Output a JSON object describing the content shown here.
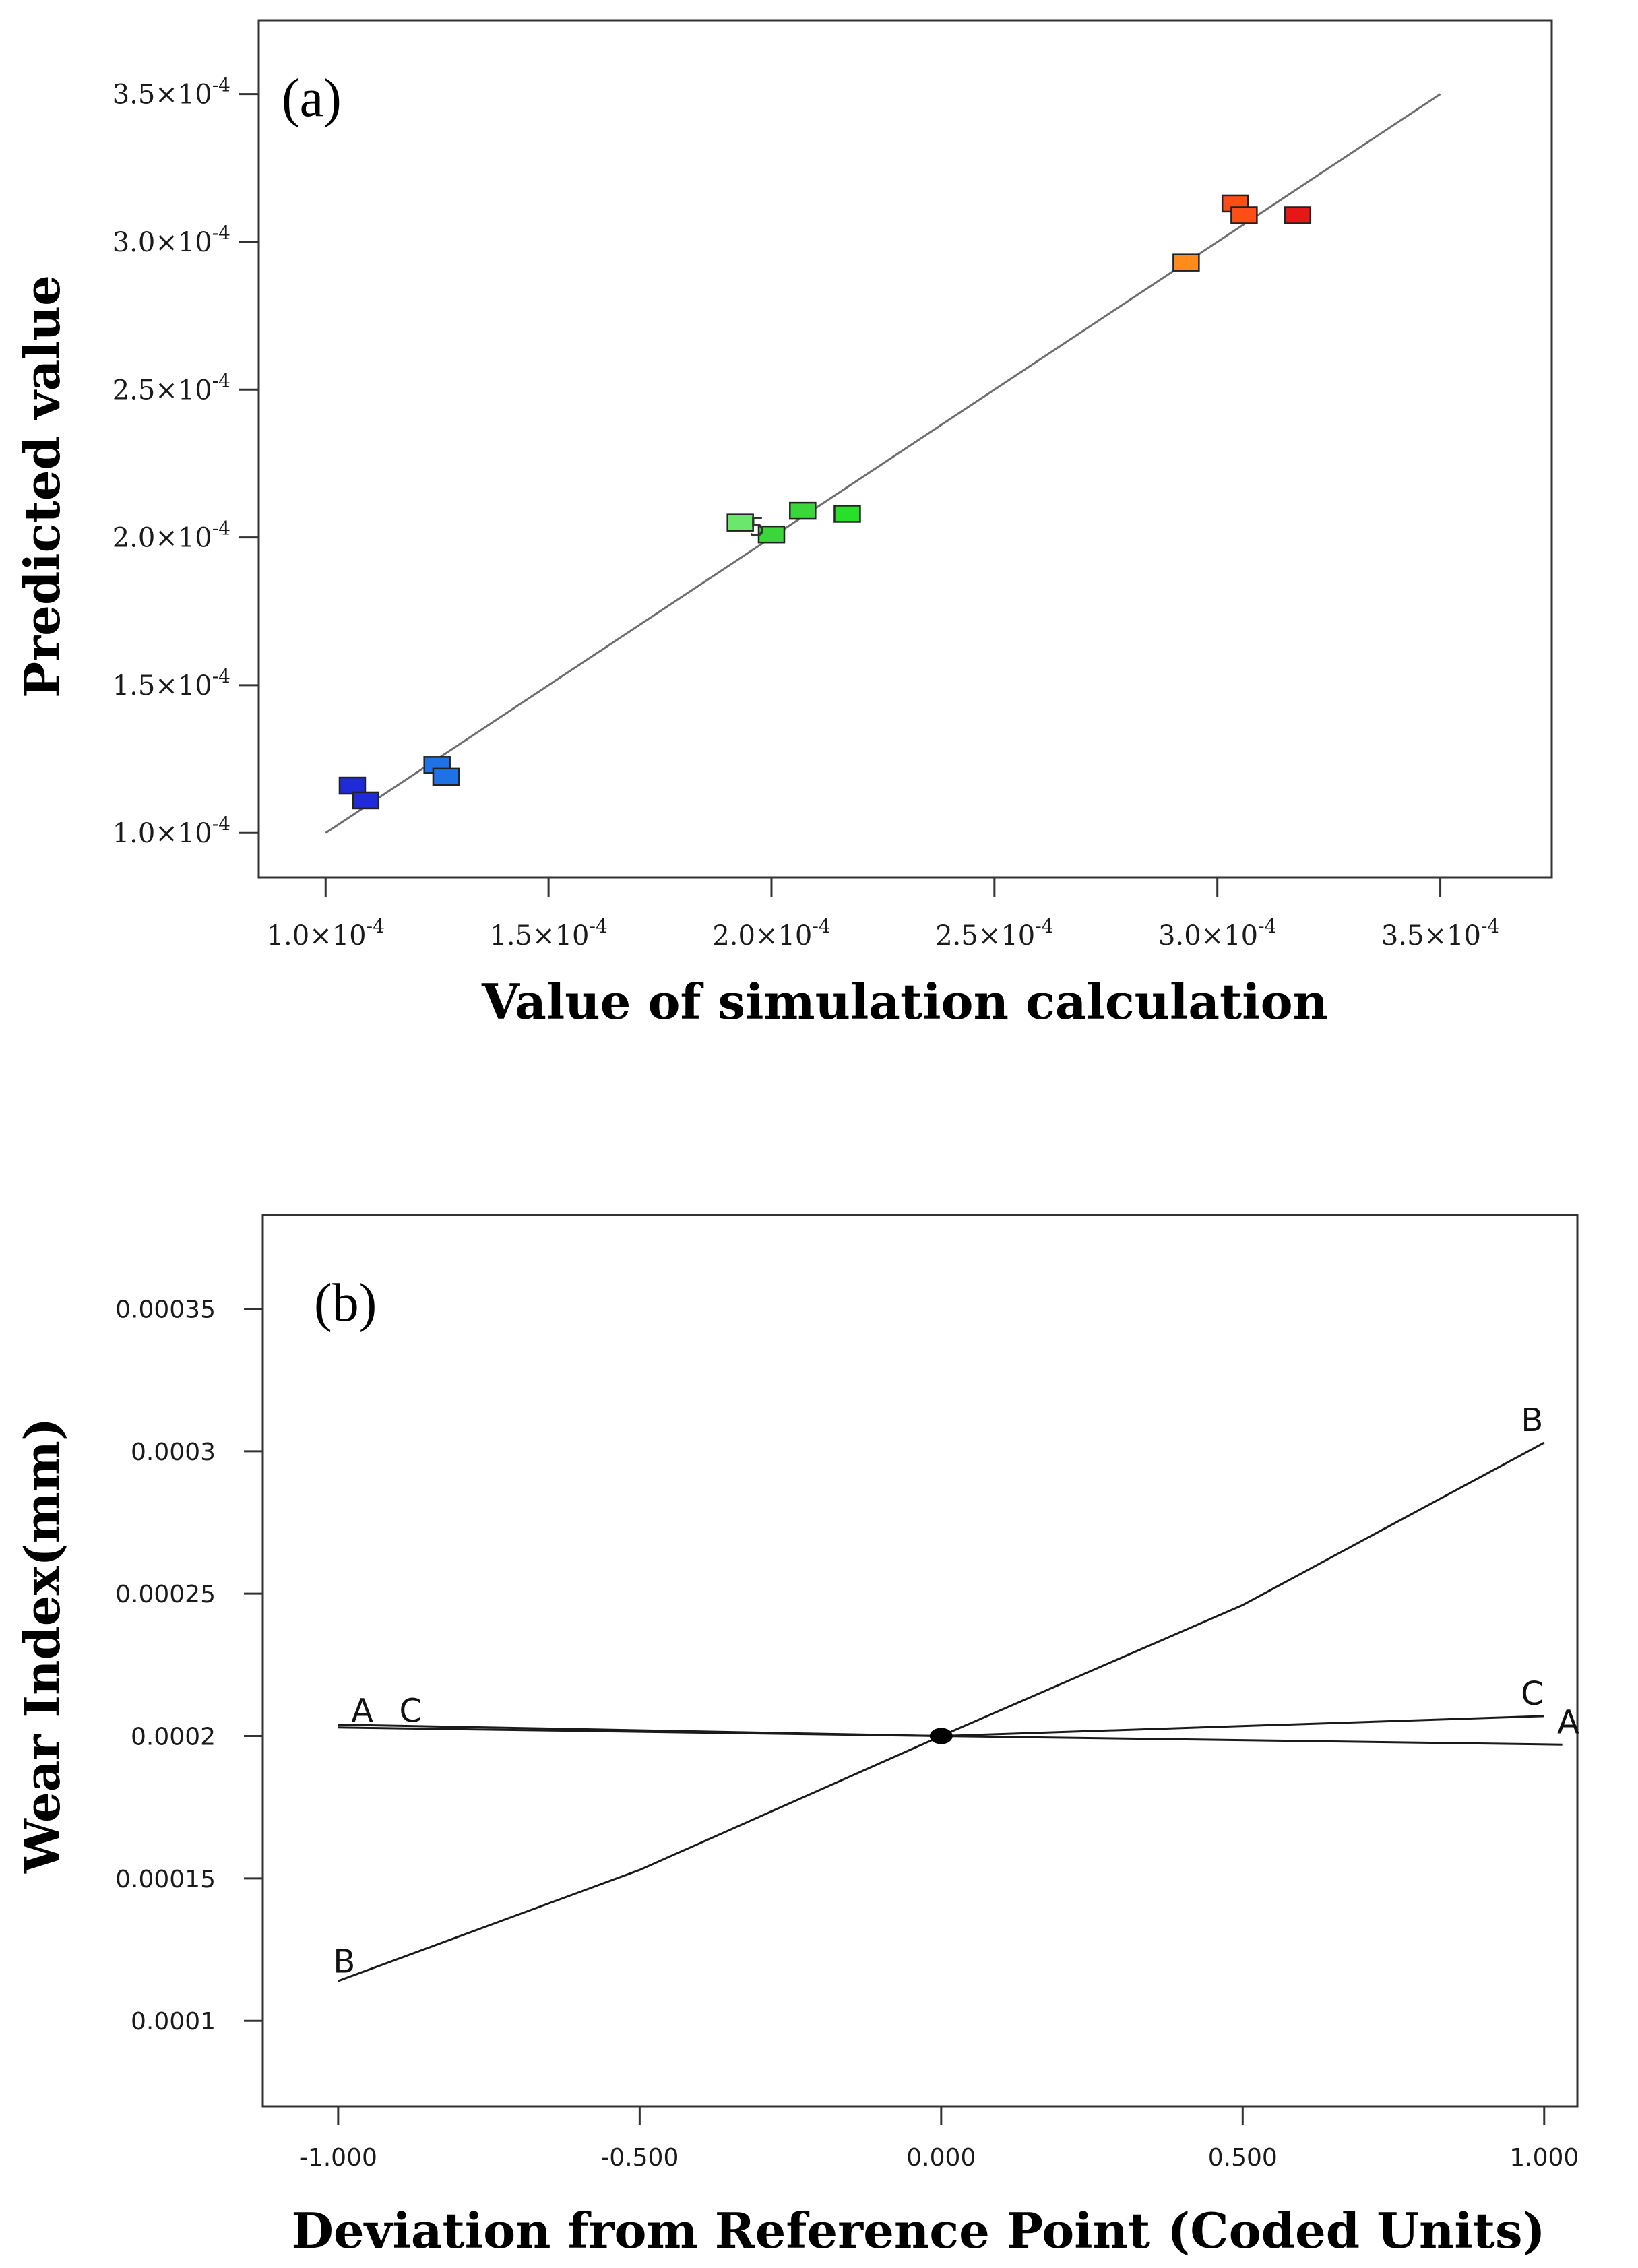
{
  "chart_data": [
    {
      "type": "scatter",
      "panel_label": "(a)",
      "title": "",
      "xlabel": "Value of simulation calculation",
      "ylabel": "Predicted value",
      "xlim": [
        0.85,
        3.75
      ],
      "ylim": [
        0.85,
        3.75
      ],
      "unit_scale": "×10^-4",
      "x_ticks": [
        1.0,
        1.5,
        2.0,
        2.5,
        3.0,
        3.5
      ],
      "y_ticks": [
        1.0,
        1.5,
        2.0,
        2.5,
        3.0,
        3.5
      ],
      "tick_mantissas": [
        "1.0",
        "1.5",
        "2.0",
        "2.5",
        "3.0",
        "3.5"
      ],
      "tick_suffix": "×10",
      "tick_exponent": "-4",
      "reference_line": {
        "from": [
          1.0,
          1.0
        ],
        "to": [
          3.5,
          3.5
        ]
      },
      "point_annotation": "5",
      "points": [
        {
          "x": 1.06,
          "y": 1.16,
          "color": "#1f2bd9"
        },
        {
          "x": 1.09,
          "y": 1.11,
          "color": "#1f2bd9"
        },
        {
          "x": 1.25,
          "y": 1.23,
          "color": "#1f72e6"
        },
        {
          "x": 1.27,
          "y": 1.19,
          "color": "#1f72e6"
        },
        {
          "x": 1.93,
          "y": 2.05,
          "color": "#6be86b"
        },
        {
          "x": 2.0,
          "y": 2.01,
          "color": "#3ad63a"
        },
        {
          "x": 2.07,
          "y": 2.09,
          "color": "#3ad63a"
        },
        {
          "x": 2.17,
          "y": 2.08,
          "color": "#27e027"
        },
        {
          "x": 2.93,
          "y": 2.93,
          "color": "#ff8c1a"
        },
        {
          "x": 3.04,
          "y": 3.13,
          "color": "#ff4d1a"
        },
        {
          "x": 3.06,
          "y": 3.09,
          "color": "#ff4d1a"
        },
        {
          "x": 3.18,
          "y": 3.09,
          "color": "#e61717"
        }
      ]
    },
    {
      "type": "line",
      "panel_label": "(b)",
      "title": "",
      "xlabel": "Deviation from Reference Point (Coded Units)",
      "ylabel": "Wear Index(mm)",
      "xlim": [
        -1.125,
        1.055
      ],
      "ylim": [
        7e-05,
        0.000383
      ],
      "x_ticks": [
        -1.0,
        -0.5,
        0.0,
        0.5,
        1.0
      ],
      "x_tick_labels": [
        "-1.000",
        "-0.500",
        "0.000",
        "0.500",
        "1.000"
      ],
      "y_ticks": [
        0.0001,
        0.00015,
        0.0002,
        0.00025,
        0.0003,
        0.00035
      ],
      "y_tick_labels": [
        "0.0001",
        "0.00015",
        "0.0002",
        "0.00025",
        "0.0003",
        "0.00035"
      ],
      "reference_point": {
        "x": 0.0,
        "y": 0.0002
      },
      "series": [
        {
          "name": "A",
          "x": [
            -1.0,
            0.0,
            1.03
          ],
          "y": [
            0.000204,
            0.0002,
            0.000197
          ],
          "labels": [
            {
              "text": "A",
              "x": -0.96,
              "y": 0.000205
            },
            {
              "text": "A",
              "x": 1.04,
              "y": 0.000201
            }
          ]
        },
        {
          "name": "B",
          "x": [
            -1.0,
            -0.5,
            0.0,
            0.5,
            1.0
          ],
          "y": [
            0.000114,
            0.000153,
            0.0002,
            0.000246,
            0.000303
          ],
          "labels": [
            {
              "text": "B",
              "x": -0.99,
              "y": 0.000117
            },
            {
              "text": "B",
              "x": 0.98,
              "y": 0.000307
            }
          ]
        },
        {
          "name": "C",
          "x": [
            -1.0,
            0.0,
            1.0
          ],
          "y": [
            0.000203,
            0.0002,
            0.000207
          ],
          "labels": [
            {
              "text": "C",
              "x": -0.88,
              "y": 0.000205
            },
            {
              "text": "C",
              "x": 0.98,
              "y": 0.000211
            }
          ]
        }
      ]
    }
  ]
}
